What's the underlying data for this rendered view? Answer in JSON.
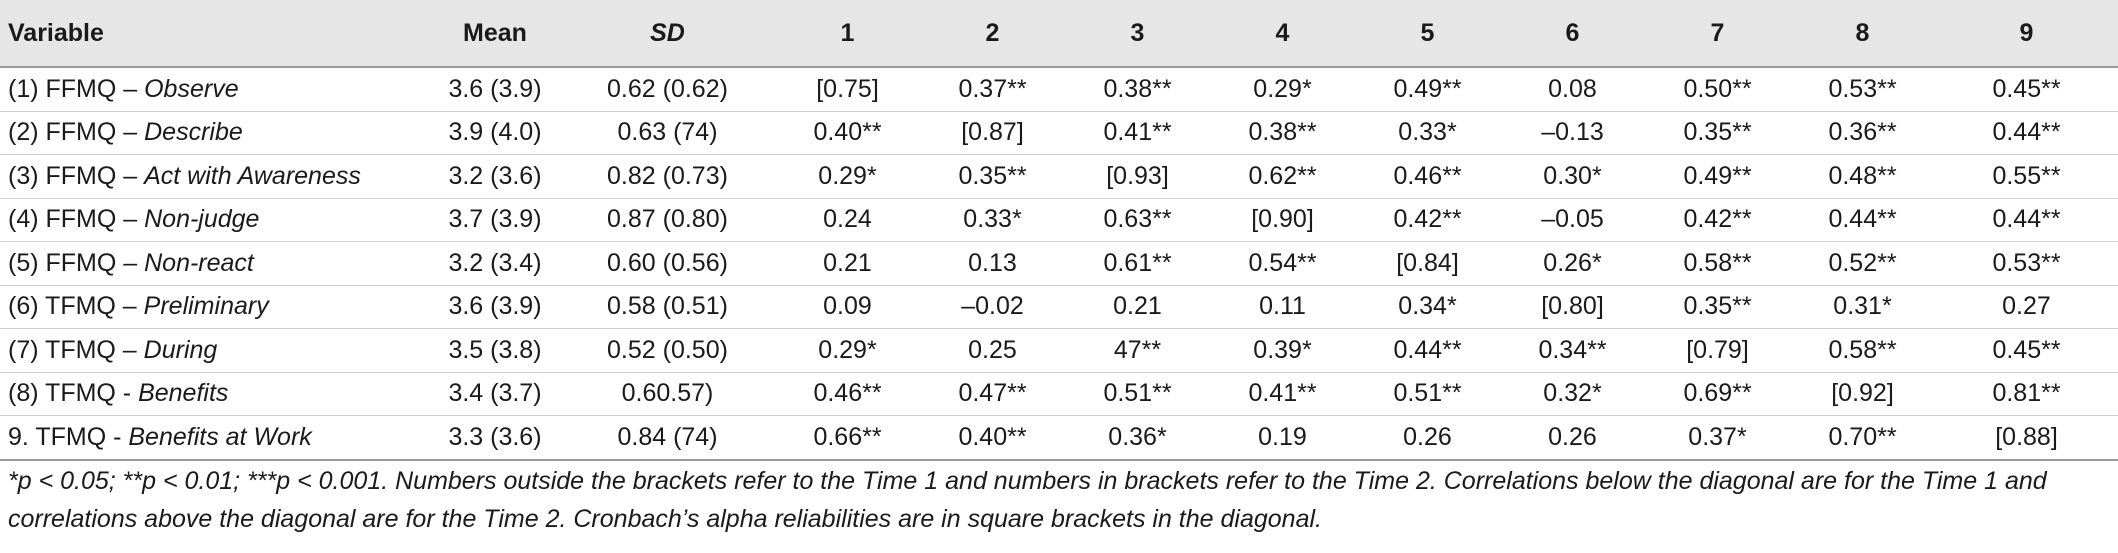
{
  "headers": [
    "Variable",
    "Mean",
    "SD",
    "1",
    "2",
    "3",
    "4",
    "5",
    "6",
    "7",
    "8",
    "9"
  ],
  "rows": [
    {
      "prefix": "(1) FFMQ – ",
      "name": "Observe",
      "mean": "3.6 (3.9)",
      "sd": "0.62 (0.62)",
      "cells": [
        "[0.75]",
        "0.37**",
        "0.38**",
        "0.29*",
        "0.49**",
        "0.08",
        "0.50**",
        "0.53**",
        "0.45**"
      ]
    },
    {
      "prefix": "(2) FFMQ – ",
      "name": "Describe",
      "mean": "3.9 (4.0)",
      "sd": "0.63 (74)",
      "cells": [
        "0.40**",
        "[0.87]",
        "0.41**",
        "0.38**",
        "0.33*",
        "–0.13",
        "0.35**",
        "0.36**",
        "0.44**"
      ]
    },
    {
      "prefix": "(3) FFMQ – ",
      "name": "Act with Awareness",
      "mean": "3.2 (3.6)",
      "sd": "0.82 (0.73)",
      "cells": [
        "0.29*",
        "0.35**",
        "[0.93]",
        "0.62**",
        "0.46**",
        "0.30*",
        "0.49**",
        "0.48**",
        "0.55**"
      ]
    },
    {
      "prefix": "(4) FFMQ – ",
      "name": "Non-judge",
      "mean": "3.7 (3.9)",
      "sd": "0.87 (0.80)",
      "cells": [
        "0.24",
        "0.33*",
        "0.63**",
        "[0.90]",
        "0.42**",
        "–0.05",
        "0.42**",
        "0.44**",
        "0.44**"
      ]
    },
    {
      "prefix": "(5) FFMQ – ",
      "name": "Non-react",
      "mean": "3.2 (3.4)",
      "sd": "0.60 (0.56)",
      "cells": [
        "0.21",
        "0.13",
        "0.61**",
        "0.54**",
        "[0.84]",
        "0.26*",
        "0.58**",
        "0.52**",
        "0.53**"
      ]
    },
    {
      "prefix": "(6) TFMQ – ",
      "name": "Preliminary",
      "mean": "3.6 (3.9)",
      "sd": "0.58 (0.51)",
      "cells": [
        "0.09",
        "–0.02",
        "0.21",
        "0.11",
        "0.34*",
        "[0.80]",
        "0.35**",
        "0.31*",
        "0.27"
      ]
    },
    {
      "prefix": "(7) TFMQ – ",
      "name": "During",
      "mean": "3.5 (3.8)",
      "sd": "0.52 (0.50)",
      "cells": [
        "0.29*",
        "0.25",
        "47**",
        "0.39*",
        "0.44**",
        "0.34**",
        "[0.79]",
        "0.58**",
        "0.45**"
      ]
    },
    {
      "prefix": "(8) TFMQ - ",
      "name": "Benefits",
      "mean": "3.4 (3.7)",
      "sd": "0.60.57)",
      "cells": [
        "0.46**",
        "0.47**",
        "0.51**",
        "0.41**",
        "0.51**",
        "0.32*",
        "0.69**",
        "[0.92]",
        "0.81**"
      ]
    },
    {
      "prefix": "9. TFMQ - ",
      "name": "Benefits at Work",
      "mean": "3.3 (3.6)",
      "sd": "0.84 (74)",
      "cells": [
        "0.66**",
        "0.40**",
        "0.36*",
        "0.19",
        "0.26",
        "0.26",
        "0.37*",
        "0.70**",
        "[0.88]"
      ]
    }
  ],
  "note": "*p < 0.05; **p < 0.01; ***p < 0.001. Numbers outside the brackets refer to the Time 1 and numbers in brackets refer to the Time 2. Correlations below the diagonal are for the Time 1 and correlations above the diagonal are for the Time 2. Cronbach’s alpha reliabilities are in square brackets in the diagonal."
}
